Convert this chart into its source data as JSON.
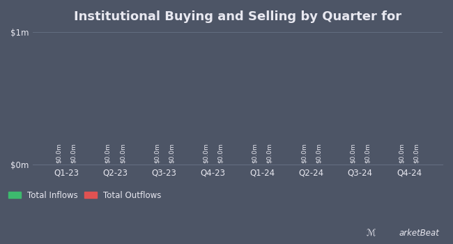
{
  "title": "Institutional Buying and Selling by Quarter for",
  "quarters": [
    "Q1-23",
    "Q2-23",
    "Q3-23",
    "Q4-23",
    "Q1-24",
    "Q2-24",
    "Q3-24",
    "Q4-24"
  ],
  "inflows": [
    0.0,
    0.0,
    0.0,
    0.0,
    0.0,
    0.0,
    0.0,
    0.0
  ],
  "outflows": [
    0.0,
    0.0,
    0.0,
    0.0,
    0.0,
    0.0,
    0.0,
    0.0
  ],
  "inflow_color": "#3dba6e",
  "outflow_color": "#e05252",
  "bg_color": "#4d5566",
  "plot_bg_color": "#4d5566",
  "text_color": "#e8e8f0",
  "grid_color": "#636d80",
  "bar_width": 0.3,
  "ylim": [
    0,
    1000000
  ],
  "yticks": [
    0,
    1000000
  ],
  "ytick_labels": [
    "$0m",
    "$1m"
  ],
  "bar_label": "$0.0m",
  "legend_inflows": "Total Inflows",
  "legend_outflows": "Total Outflows",
  "title_fontsize": 13,
  "tick_fontsize": 8.5,
  "bar_label_fontsize": 6.5,
  "legend_fontsize": 8.5
}
